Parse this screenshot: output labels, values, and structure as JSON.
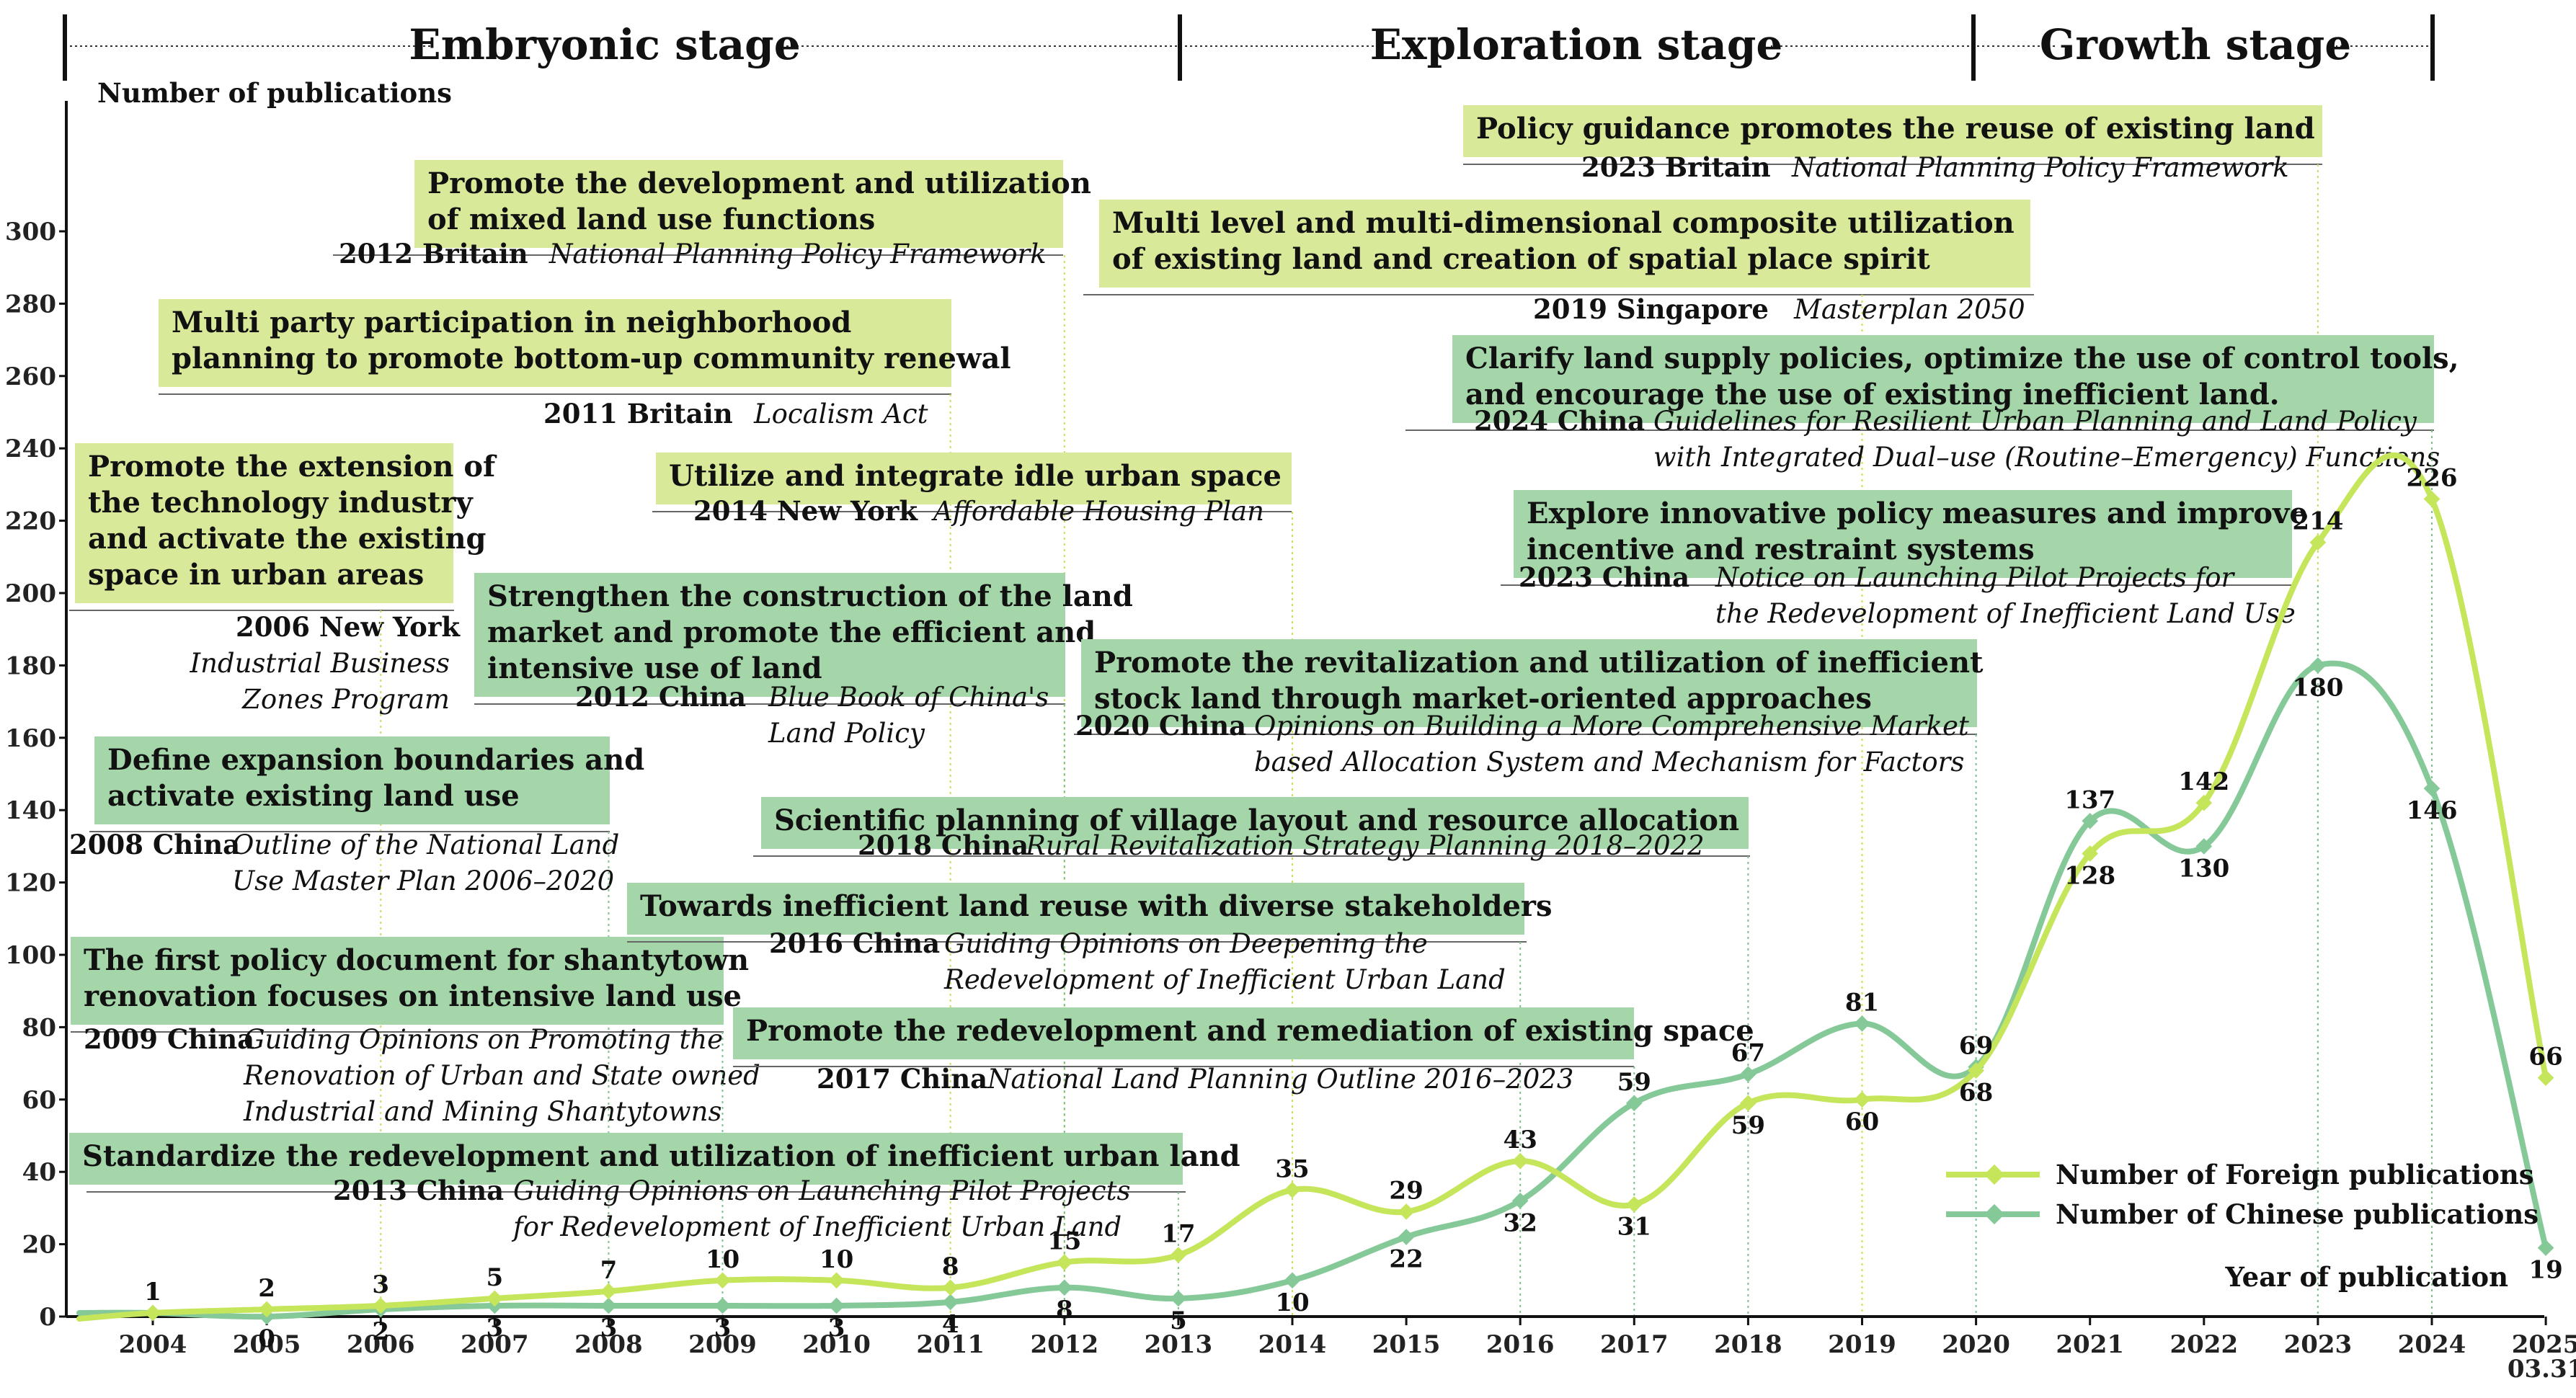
{
  "chart_data": {
    "type": "line",
    "ylabel": "Number of publications",
    "xlabel": "Year of publication",
    "ylim": [
      0,
      320
    ],
    "yticks": [
      "0",
      "20",
      "40",
      "60",
      "80",
      "100",
      "120",
      "140",
      "160",
      "180",
      "200",
      "220",
      "240",
      "260",
      "280",
      "300"
    ],
    "categories": [
      "2004",
      "2005",
      "2006",
      "2007",
      "2008",
      "2009",
      "2010",
      "2011",
      "2012",
      "2013",
      "2014",
      "2015",
      "2016",
      "2017",
      "2018",
      "2019",
      "2020",
      "2021",
      "2022",
      "2023",
      "2024",
      "2025\n03.31"
    ],
    "series": [
      {
        "name": "Number of Foreign publications",
        "color": "#c5e55a",
        "values": [
          1,
          2,
          3,
          5,
          7,
          10,
          10,
          8,
          15,
          17,
          35,
          29,
          43,
          31,
          59,
          60,
          68,
          128,
          142,
          214,
          226,
          66
        ]
      },
      {
        "name": "Number of Chinese publications",
        "color": "#86c999",
        "values": [
          1,
          0,
          2,
          3,
          3,
          3,
          3,
          4,
          8,
          5,
          10,
          22,
          32,
          59,
          67,
          81,
          69,
          137,
          130,
          180,
          146,
          19
        ]
      }
    ],
    "legend_position": "bottom-right",
    "stages": [
      "Embryonic stage",
      "Exploration stage",
      "Growth stage"
    ]
  },
  "annotations": [
    {
      "title": [
        "Promote the development and utilization",
        "of mixed land use functions"
      ],
      "color": "#d9e99a",
      "year": "2012  Britain",
      "doc": [
        "National Planning Policy Framework"
      ],
      "xyear": "2012"
    },
    {
      "title": [
        "Multi party participation in neighborhood",
        "planning to promote bottom-up community renewal"
      ],
      "color": "#d9e99a",
      "year": "2011   Britain",
      "doc": [
        "Localism Act"
      ],
      "xyear": "2011"
    },
    {
      "title": [
        "Promote the extension of",
        "the technology industry",
        "and activate the existing",
        "space in urban areas"
      ],
      "color": "#d9e99a",
      "year": "2006  New York",
      "doc": [
        "Industrial Business",
        "Zones Program"
      ],
      "xyear": "2006"
    },
    {
      "title": [
        "Utilize and integrate idle urban space"
      ],
      "color": "#d9e99a",
      "year": "2014  New York",
      "doc": [
        "Affordable Housing Plan"
      ],
      "xyear": "2014"
    },
    {
      "title": [
        "Strengthen the construction of the land",
        "market and promote the efficient and",
        "intensive use of land"
      ],
      "color": "#a5d6a9",
      "year": "2012 China",
      "doc": [
        "Blue Book of China's",
        "Land Policy"
      ],
      "xyear": "2012"
    },
    {
      "title": [
        "Define expansion boundaries and",
        "activate existing land use"
      ],
      "color": "#a5d6a9",
      "year": "2008 China",
      "doc": [
        "Outline of the National Land",
        "Use Master Plan 2006–2020"
      ],
      "xyear": "2008"
    },
    {
      "title": [
        "The first policy document for shantytown",
        "renovation focuses on intensive land use"
      ],
      "color": "#a5d6a9",
      "year": "2009 China",
      "doc": [
        "Guiding Opinions on Promoting the",
        "Renovation of Urban and State owned",
        "Industrial and Mining Shantytowns"
      ],
      "xyear": "2009"
    },
    {
      "title": [
        "Standardize the redevelopment and utilization of inefficient urban land"
      ],
      "color": "#a5d6a9",
      "year": "2013 China",
      "doc": [
        "Guiding Opinions on Launching Pilot Projects",
        "for Redevelopment of Inefficient Urban Land"
      ],
      "xyear": "2013"
    },
    {
      "title": [
        "Scientific planning of village layout and resource allocation"
      ],
      "color": "#a5d6a9",
      "year": "2018 China",
      "doc": [
        "Rural Revitalization Strategy Planning  2018–2022"
      ],
      "xyear": "2018"
    },
    {
      "title": [
        "Towards inefficient land reuse with diverse stakeholders"
      ],
      "color": "#a5d6a9",
      "year": "2016 China",
      "doc": [
        "Guiding Opinions on Deepening the",
        "Redevelopment  of Inefficient Urban Land"
      ],
      "xyear": "2016"
    },
    {
      "title": [
        "Promote the redevelopment and remediation of existing space"
      ],
      "color": "#a5d6a9",
      "year": "2017 China",
      "doc": [
        "National Land Planning Outline  2016–2023"
      ],
      "xyear": "2017"
    },
    {
      "title": [
        "Policy guidance promotes the reuse of existing land"
      ],
      "color": "#d9e99a",
      "year": "2023   Britain",
      "doc": [
        "National Planning Policy Framework"
      ],
      "xyear": "2023"
    },
    {
      "title": [
        "Multi level and multi-dimensional composite utilization",
        "of existing land and creation of spatial place spirit"
      ],
      "color": "#d9e99a",
      "year": "2019  Singapore",
      "doc": [
        "Masterplan 2050"
      ],
      "xyear": "2019"
    },
    {
      "title": [
        "Clarify land supply policies, optimize the use of control tools,",
        "and encourage the use of existing inefficient land."
      ],
      "color": "#a5d6a9",
      "year": "2024 China",
      "doc": [
        "Guidelines for Resilient Urban Planning and Land Policy",
        "with Integrated Dual–use (Routine–Emergency) Functions"
      ],
      "xyear": "2024"
    },
    {
      "title": [
        "Explore innovative policy measures and improve",
        "incentive and restraint systems"
      ],
      "color": "#a5d6a9",
      "year": "2023 China",
      "doc": [
        "Notice on Launching Pilot Projects for",
        "the Redevelopment of Inefficient Land Use"
      ],
      "xyear": "2023"
    },
    {
      "title": [
        "Promote the revitalization and utilization of inefficient",
        "stock land through market-oriented approaches"
      ],
      "color": "#a5d6a9",
      "year": "2020 China",
      "doc": [
        "Opinions on Building a More Comprehensive Market",
        "based Allocation System and Mechanism for Factors"
      ],
      "xyear": "2020"
    }
  ]
}
